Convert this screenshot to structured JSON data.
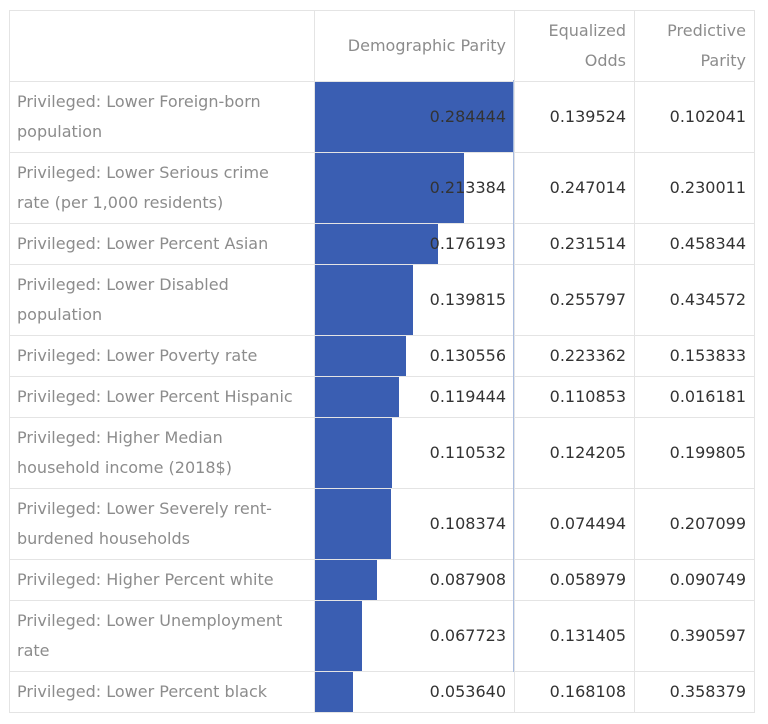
{
  "colors": {
    "bar": "#3a5eb2",
    "label_text": "#8c8c8c",
    "value_text": "#333333",
    "grid": "#e4e4e4"
  },
  "columns": [
    {
      "id": "dp",
      "lines": [
        "Demographic Parity"
      ]
    },
    {
      "id": "eo",
      "lines": [
        "Equalized",
        "Odds"
      ]
    },
    {
      "id": "pp",
      "lines": [
        "Predictive",
        "Parity"
      ]
    }
  ],
  "chart_data": {
    "type": "table",
    "bar_column": "Demographic Parity",
    "bar_domain": [
      0,
      0.284444
    ],
    "rows": [
      {
        "label_lines": [
          "Privileged: Lower Foreign-born",
          "population"
        ],
        "dp": "0.284444",
        "eo": "0.139524",
        "pp": "0.102041"
      },
      {
        "label_lines": [
          "Privileged: Lower Serious crime",
          "rate (per 1,000 residents)"
        ],
        "dp": "0.213384",
        "eo": "0.247014",
        "pp": "0.230011"
      },
      {
        "label_lines": [
          "Privileged: Lower Percent Asian"
        ],
        "dp": "0.176193",
        "eo": "0.231514",
        "pp": "0.458344"
      },
      {
        "label_lines": [
          "Privileged: Lower Disabled",
          "population"
        ],
        "dp": "0.139815",
        "eo": "0.255797",
        "pp": "0.434572"
      },
      {
        "label_lines": [
          "Privileged: Lower Poverty rate"
        ],
        "dp": "0.130556",
        "eo": "0.223362",
        "pp": "0.153833"
      },
      {
        "label_lines": [
          "Privileged: Lower Percent Hispanic"
        ],
        "dp": "0.119444",
        "eo": "0.110853",
        "pp": "0.016181"
      },
      {
        "label_lines": [
          "Privileged: Higher Median",
          "household income (2018$)"
        ],
        "dp": "0.110532",
        "eo": "0.124205",
        "pp": "0.199805"
      },
      {
        "label_lines": [
          "Privileged: Lower Severely rent-",
          "burdened households"
        ],
        "dp": "0.108374",
        "eo": "0.074494",
        "pp": "0.207099"
      },
      {
        "label_lines": [
          "Privileged: Higher Percent white"
        ],
        "dp": "0.087908",
        "eo": "0.058979",
        "pp": "0.090749"
      },
      {
        "label_lines": [
          "Privileged: Lower Unemployment",
          "rate"
        ],
        "dp": "0.067723",
        "eo": "0.131405",
        "pp": "0.390597"
      },
      {
        "label_lines": [
          "Privileged: Lower Percent black"
        ],
        "dp": "0.053640",
        "eo": "0.168108",
        "pp": "0.358379"
      }
    ]
  }
}
